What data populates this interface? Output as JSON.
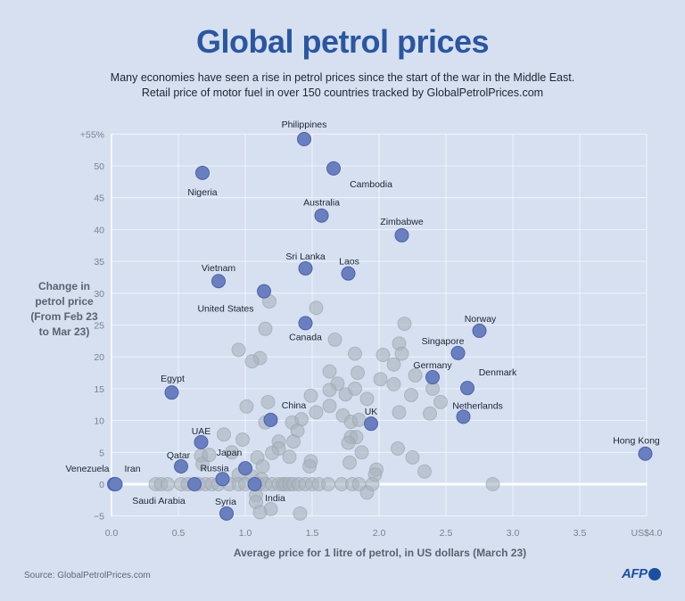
{
  "title": "Global petrol prices",
  "subtitle_lines": [
    "Many economies have seen a rise in petrol prices since the start of the war in the Middle East.",
    "Retail price of motor fuel in over 150 countries tracked by GlobalPetrolPrices.com"
  ],
  "source": "Source: GlobalPetrolPrices.com",
  "logo": "AFP",
  "colors": {
    "background": "#d6e0f1",
    "title": "#2b56a0",
    "highlight": "#6a7fc0",
    "other": "#aab3bd"
  },
  "chart_data": {
    "type": "scatter",
    "xlabel": "Average price for 1 litre of petrol, in US dollars (March 23)",
    "ylabel_lines": [
      "Change in",
      "petrol price",
      "(From Feb 23",
      "to Mar 23)"
    ],
    "xlim": [
      0,
      4
    ],
    "ylim": [
      -5,
      55
    ],
    "x_ticks": [
      {
        "value": 0,
        "label": "0.0"
      },
      {
        "value": 0.5,
        "label": "0.5"
      },
      {
        "value": 1,
        "label": "1.0"
      },
      {
        "value": 1.5,
        "label": "1.5"
      },
      {
        "value": 2,
        "label": "2.0"
      },
      {
        "value": 2.5,
        "label": "2.5"
      },
      {
        "value": 3,
        "label": "3.0"
      },
      {
        "value": 3.5,
        "label": "3.5"
      },
      {
        "value": 4,
        "label": "US$4.0"
      }
    ],
    "y_ticks": [
      {
        "value": -5,
        "label": "−5"
      },
      {
        "value": 0,
        "label": "0"
      },
      {
        "value": 5,
        "label": "5"
      },
      {
        "value": 10,
        "label": "10"
      },
      {
        "value": 15,
        "label": "15"
      },
      {
        "value": 20,
        "label": "20"
      },
      {
        "value": 25,
        "label": "25"
      },
      {
        "value": 30,
        "label": "30"
      },
      {
        "value": 35,
        "label": "35"
      },
      {
        "value": 40,
        "label": "40"
      },
      {
        "value": 45,
        "label": "45"
      },
      {
        "value": 50,
        "label": "50"
      },
      {
        "value": 55,
        "label": "+55%"
      }
    ],
    "grid": true,
    "highlighted": [
      {
        "name": "Philippines",
        "x": 1.44,
        "y": 54.2
      },
      {
        "name": "Nigeria",
        "x": 0.68,
        "y": 48.9
      },
      {
        "name": "Cambodia",
        "x": 1.66,
        "y": 49.6
      },
      {
        "name": "Australia",
        "x": 1.57,
        "y": 42.2
      },
      {
        "name": "Zimbabwe",
        "x": 2.17,
        "y": 39.1
      },
      {
        "name": "Sri Lanka",
        "x": 1.45,
        "y": 33.9
      },
      {
        "name": "Laos",
        "x": 1.77,
        "y": 33.1
      },
      {
        "name": "Vietnam",
        "x": 0.8,
        "y": 31.9
      },
      {
        "name": "United States",
        "x": 1.14,
        "y": 30.3
      },
      {
        "name": "Canada",
        "x": 1.45,
        "y": 25.3
      },
      {
        "name": "Norway",
        "x": 2.75,
        "y": 24.1
      },
      {
        "name": "Singapore",
        "x": 2.59,
        "y": 20.6
      },
      {
        "name": "Egypt",
        "x": 0.45,
        "y": 14.4
      },
      {
        "name": "Germany",
        "x": 2.4,
        "y": 16.8
      },
      {
        "name": "Denmark",
        "x": 2.66,
        "y": 15.1
      },
      {
        "name": "China",
        "x": 1.19,
        "y": 10.1
      },
      {
        "name": "Netherlands",
        "x": 2.63,
        "y": 10.6
      },
      {
        "name": "UK",
        "x": 1.94,
        "y": 9.5
      },
      {
        "name": "UAE",
        "x": 0.67,
        "y": 6.6
      },
      {
        "name": "Qatar",
        "x": 0.52,
        "y": 2.8
      },
      {
        "name": "Japan",
        "x": 1.0,
        "y": 2.5
      },
      {
        "name": "Russia",
        "x": 0.83,
        "y": 0.8
      },
      {
        "name": "Venezuela",
        "x": 0.02,
        "y": 0
      },
      {
        "name": "Iran",
        "x": 0.03,
        "y": 0
      },
      {
        "name": "Saudi Arabia",
        "x": 0.62,
        "y": 0
      },
      {
        "name": "India",
        "x": 1.07,
        "y": 0
      },
      {
        "name": "Syria",
        "x": 0.86,
        "y": -4.6
      },
      {
        "name": "Hong Kong",
        "x": 3.99,
        "y": 4.8
      }
    ],
    "others": [
      [
        1.53,
        27.7
      ],
      [
        1.18,
        28.7
      ],
      [
        1.15,
        24.4
      ],
      [
        1.67,
        22.7
      ],
      [
        2.19,
        25.2
      ],
      [
        0.95,
        21.1
      ],
      [
        1.11,
        19.8
      ],
      [
        1.05,
        19.3
      ],
      [
        1.82,
        20.5
      ],
      [
        2.03,
        20.3
      ],
      [
        2.15,
        22.1
      ],
      [
        2.17,
        20.5
      ],
      [
        2.11,
        18.8
      ],
      [
        1.63,
        17.7
      ],
      [
        1.84,
        17.5
      ],
      [
        2.01,
        16.5
      ],
      [
        2.11,
        15.7
      ],
      [
        2.27,
        17.1
      ],
      [
        2.4,
        15.0
      ],
      [
        1.69,
        15.8
      ],
      [
        1.63,
        14.8
      ],
      [
        1.75,
        14.1
      ],
      [
        1.82,
        15.0
      ],
      [
        1.91,
        13.4
      ],
      [
        2.24,
        14.0
      ],
      [
        2.46,
        12.9
      ],
      [
        1.49,
        13.9
      ],
      [
        1.17,
        12.9
      ],
      [
        1.01,
        12.2
      ],
      [
        1.53,
        11.3
      ],
      [
        1.63,
        12.3
      ],
      [
        1.73,
        10.8
      ],
      [
        1.79,
        9.8
      ],
      [
        1.85,
        10.1
      ],
      [
        2.15,
        11.3
      ],
      [
        2.38,
        11.1
      ],
      [
        1.15,
        9.7
      ],
      [
        1.35,
        9.7
      ],
      [
        1.42,
        10.2
      ],
      [
        1.39,
        8.4
      ],
      [
        0.84,
        7.8
      ],
      [
        0.98,
        7.0
      ],
      [
        1.36,
        6.7
      ],
      [
        1.25,
        6.7
      ],
      [
        1.79,
        7.4
      ],
      [
        1.83,
        7.4
      ],
      [
        1.77,
        6.5
      ],
      [
        1.87,
        5.0
      ],
      [
        2.14,
        5.6
      ],
      [
        2.25,
        4.2
      ],
      [
        2.34,
        2.0
      ],
      [
        1.25,
        5.6
      ],
      [
        1.2,
        4.9
      ],
      [
        1.33,
        4.3
      ],
      [
        0.9,
        5.0
      ],
      [
        1.09,
        4.2
      ],
      [
        1.13,
        2.8
      ],
      [
        1.49,
        3.6
      ],
      [
        1.48,
        2.8
      ],
      [
        1.78,
        3.4
      ],
      [
        1.98,
        2.3
      ],
      [
        1.97,
        1.5
      ],
      [
        0.67,
        4.5
      ],
      [
        0.68,
        3.2
      ],
      [
        0.73,
        4.6
      ],
      [
        0.95,
        1.5
      ],
      [
        1.05,
        1.2
      ],
      [
        1.12,
        0.8
      ],
      [
        1.08,
        -1.7
      ],
      [
        1.08,
        -2.8
      ],
      [
        1.19,
        -3.9
      ],
      [
        1.11,
        -4.4
      ],
      [
        1.41,
        -4.6
      ],
      [
        1.91,
        -1.3
      ],
      [
        0.33,
        0
      ],
      [
        0.37,
        0
      ],
      [
        0.42,
        0
      ],
      [
        0.52,
        0
      ],
      [
        0.57,
        0
      ],
      [
        0.65,
        0
      ],
      [
        0.7,
        0
      ],
      [
        0.75,
        0
      ],
      [
        0.8,
        0
      ],
      [
        0.88,
        0
      ],
      [
        0.95,
        0
      ],
      [
        1.0,
        0
      ],
      [
        1.1,
        0
      ],
      [
        1.15,
        0
      ],
      [
        1.2,
        0
      ],
      [
        1.25,
        0
      ],
      [
        1.28,
        0
      ],
      [
        1.3,
        0
      ],
      [
        1.33,
        0
      ],
      [
        1.36,
        0
      ],
      [
        1.4,
        0
      ],
      [
        1.45,
        0
      ],
      [
        1.5,
        0
      ],
      [
        1.55,
        0
      ],
      [
        1.62,
        0
      ],
      [
        1.72,
        0
      ],
      [
        1.8,
        0
      ],
      [
        1.85,
        0
      ],
      [
        1.95,
        0
      ],
      [
        2.85,
        0
      ]
    ]
  }
}
